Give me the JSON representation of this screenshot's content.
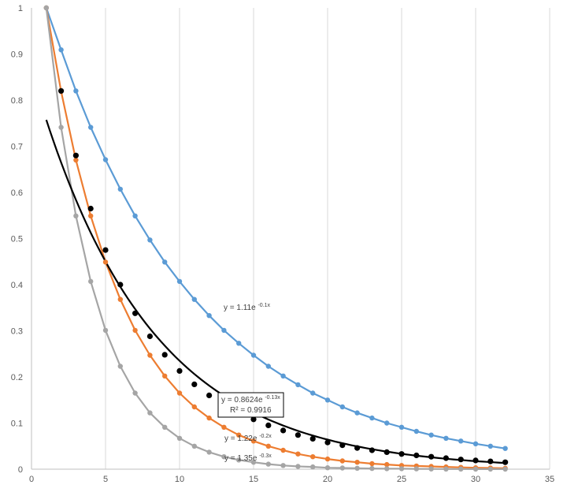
{
  "chart_data": {
    "type": "scatter",
    "title": "",
    "xlabel": "",
    "ylabel": "",
    "xlim": [
      0,
      35
    ],
    "ylim": [
      0,
      1
    ],
    "x_ticks": [
      "0",
      "5",
      "10",
      "15",
      "20",
      "25",
      "30",
      "35"
    ],
    "y_ticks": [
      "0",
      "0.1",
      "0.2",
      "0.3",
      "0.4",
      "0.5",
      "0.6",
      "0.7",
      "0.8",
      "0.9",
      "1"
    ],
    "grid": "vertical",
    "legend": "none",
    "series": [
      {
        "color": "#5B9BD5",
        "x": [
          1,
          2,
          3,
          4,
          5,
          6,
          7,
          8,
          9,
          10,
          11,
          12,
          13,
          14,
          15,
          16,
          17,
          18,
          19,
          20,
          21,
          22,
          23,
          24,
          25,
          26,
          27,
          28,
          29,
          30,
          31,
          32
        ],
        "values": [
          1,
          0.909,
          0.82,
          0.741,
          0.671,
          0.607,
          0.549,
          0.497,
          0.449,
          0.407,
          0.368,
          0.333,
          0.301,
          0.273,
          0.247,
          0.223,
          0.202,
          0.183,
          0.165,
          0.15,
          0.135,
          0.122,
          0.111,
          0.1,
          0.091,
          0.082,
          0.074,
          0.067,
          0.061,
          0.055,
          0.05,
          0.045
        ],
        "trendline": {
          "type": "exponential",
          "a": 1.11,
          "b": -0.1,
          "label": "y = 1.11e",
          "label_exp": "-0.1x"
        }
      },
      {
        "color": "#ED7D31",
        "x": [
          1,
          2,
          3,
          4,
          5,
          6,
          7,
          8,
          9,
          10,
          11,
          12,
          13,
          14,
          15,
          16,
          17,
          18,
          19,
          20,
          21,
          22,
          23,
          24,
          25,
          26,
          27,
          28,
          29,
          30,
          31,
          32
        ],
        "values": [
          1,
          0.819,
          0.67,
          0.549,
          0.449,
          0.368,
          0.301,
          0.247,
          0.202,
          0.165,
          0.135,
          0.111,
          0.091,
          0.074,
          0.061,
          0.05,
          0.041,
          0.033,
          0.027,
          0.022,
          0.018,
          0.015,
          0.012,
          0.01,
          0.008,
          0.007,
          0.006,
          0.005,
          0.004,
          0.003,
          0.0025,
          0.002
        ],
        "trendline": {
          "type": "exponential",
          "a": 1.22,
          "b": -0.2,
          "label": "y = 1.22e",
          "label_exp": "-0.2x"
        }
      },
      {
        "color": "#A5A5A5",
        "x": [
          1,
          2,
          3,
          4,
          5,
          6,
          7,
          8,
          9,
          10,
          11,
          12,
          13,
          14,
          15,
          16,
          17,
          18,
          19,
          20,
          21,
          22,
          23,
          24,
          25,
          26,
          27,
          28,
          29,
          30,
          31,
          32
        ],
        "values": [
          1,
          0.741,
          0.549,
          0.407,
          0.301,
          0.223,
          0.165,
          0.122,
          0.091,
          0.067,
          0.05,
          0.037,
          0.027,
          0.02,
          0.015,
          0.011,
          0.008,
          0.006,
          0.005,
          0.003,
          0.0025,
          0.002,
          0.0015,
          0.001,
          0.001,
          0.0007,
          0.0005,
          0.0004,
          0.0003,
          0.0002,
          0.0002,
          0.0001
        ],
        "trendline": {
          "type": "exponential",
          "a": 1.35,
          "b": -0.3,
          "label": "y = 1.35e",
          "label_exp": "-0.3x"
        }
      },
      {
        "color": "#000000",
        "x": [
          2,
          3,
          4,
          5,
          6,
          7,
          8,
          9,
          10,
          11,
          12,
          13,
          14,
          15,
          16,
          17,
          18,
          19,
          20,
          21,
          22,
          23,
          24,
          25,
          26,
          27,
          28,
          29,
          30,
          31,
          32
        ],
        "values": [
          0.82,
          0.68,
          0.565,
          0.475,
          0.4,
          0.338,
          0.288,
          0.248,
          0.213,
          0.184,
          0.16,
          0.14,
          0.123,
          0.108,
          0.095,
          0.084,
          0.074,
          0.066,
          0.058,
          0.052,
          0.046,
          0.041,
          0.037,
          0.033,
          0.03,
          0.027,
          0.024,
          0.021,
          0.019,
          0.017,
          0.015
        ],
        "trendline": {
          "type": "exponential",
          "a": 0.8624,
          "b": -0.13,
          "label": "y = 0.8624e",
          "label_exp": "-0.13x",
          "r2_label": "R² = 0.9916"
        }
      }
    ]
  }
}
